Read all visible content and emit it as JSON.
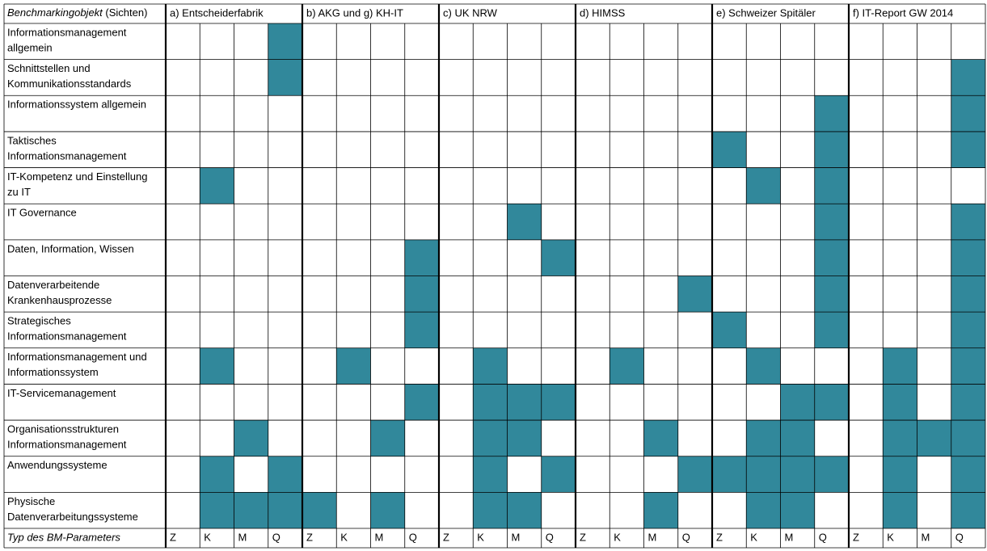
{
  "header": {
    "object_italic": "Benchmarkingobjekt",
    "object_suffix": " (Sichten)",
    "groups": [
      "a) Entscheiderfabrik",
      "b) AKG und g) KH-IT",
      "c) UK NRW",
      "d) HIMSS",
      "e) Schweizer Spitäler",
      "f) IT-Report GW 2014"
    ]
  },
  "fill_color": "#31889b",
  "rows": [
    {
      "label": [
        "Informationsmanagement",
        "allgemein"
      ],
      "cells": [
        0,
        0,
        0,
        1,
        0,
        0,
        0,
        0,
        0,
        0,
        0,
        0,
        0,
        0,
        0,
        0,
        0,
        0,
        0,
        0,
        0,
        0,
        0,
        0
      ]
    },
    {
      "label": [
        "Schnittstellen und",
        "Kommunikationsstandards"
      ],
      "cells": [
        0,
        0,
        0,
        1,
        0,
        0,
        0,
        0,
        0,
        0,
        0,
        0,
        0,
        0,
        0,
        0,
        0,
        0,
        0,
        0,
        0,
        0,
        0,
        1
      ]
    },
    {
      "label": [
        "Informationssystem allgemein"
      ],
      "cells": [
        0,
        0,
        0,
        0,
        0,
        0,
        0,
        0,
        0,
        0,
        0,
        0,
        0,
        0,
        0,
        0,
        0,
        0,
        0,
        1,
        0,
        0,
        0,
        1
      ]
    },
    {
      "label": [
        "Taktisches",
        "Informationsmanagement"
      ],
      "cells": [
        0,
        0,
        0,
        0,
        0,
        0,
        0,
        0,
        0,
        0,
        0,
        0,
        0,
        0,
        0,
        0,
        1,
        0,
        0,
        1,
        0,
        0,
        0,
        1
      ]
    },
    {
      "label": [
        "IT-Kompetenz und Einstellung",
        "zu IT"
      ],
      "cells": [
        0,
        1,
        0,
        0,
        0,
        0,
        0,
        0,
        0,
        0,
        0,
        0,
        0,
        0,
        0,
        0,
        0,
        1,
        0,
        1,
        0,
        0,
        0,
        0
      ]
    },
    {
      "label": [
        "IT Governance"
      ],
      "cells": [
        0,
        0,
        0,
        0,
        0,
        0,
        0,
        0,
        0,
        0,
        1,
        0,
        0,
        0,
        0,
        0,
        0,
        0,
        0,
        1,
        0,
        0,
        0,
        1
      ]
    },
    {
      "label": [
        "Daten, Information, Wissen"
      ],
      "cells": [
        0,
        0,
        0,
        0,
        0,
        0,
        0,
        1,
        0,
        0,
        0,
        1,
        0,
        0,
        0,
        0,
        0,
        0,
        0,
        1,
        0,
        0,
        0,
        1
      ]
    },
    {
      "label": [
        "Datenverarbeitende",
        "Krankenhausprozesse"
      ],
      "cells": [
        0,
        0,
        0,
        0,
        0,
        0,
        0,
        1,
        0,
        0,
        0,
        0,
        0,
        0,
        0,
        1,
        0,
        0,
        0,
        1,
        0,
        0,
        0,
        1
      ]
    },
    {
      "label": [
        "Strategisches",
        "Informationsmanagement"
      ],
      "cells": [
        0,
        0,
        0,
        0,
        0,
        0,
        0,
        1,
        0,
        0,
        0,
        0,
        0,
        0,
        0,
        0,
        1,
        0,
        0,
        1,
        0,
        0,
        0,
        1
      ]
    },
    {
      "label": [
        "Informationsmanagement und",
        "Informationssystem"
      ],
      "cells": [
        0,
        1,
        0,
        0,
        0,
        1,
        0,
        0,
        0,
        1,
        0,
        0,
        0,
        1,
        0,
        0,
        0,
        1,
        0,
        0,
        0,
        1,
        0,
        1
      ]
    },
    {
      "label": [
        "IT-Servicemanagement"
      ],
      "cells": [
        0,
        0,
        0,
        0,
        0,
        0,
        0,
        1,
        0,
        1,
        1,
        1,
        0,
        0,
        0,
        0,
        0,
        0,
        1,
        1,
        0,
        1,
        0,
        1
      ]
    },
    {
      "label": [
        "Organisationsstrukturen",
        "Informationsmanagement"
      ],
      "cells": [
        0,
        0,
        1,
        0,
        0,
        0,
        1,
        0,
        0,
        1,
        1,
        0,
        0,
        0,
        1,
        0,
        0,
        1,
        1,
        0,
        0,
        1,
        1,
        1
      ]
    },
    {
      "label": [
        "Anwendungssysteme"
      ],
      "cells": [
        0,
        1,
        0,
        1,
        0,
        0,
        0,
        0,
        0,
        1,
        0,
        1,
        0,
        0,
        0,
        1,
        1,
        1,
        1,
        1,
        0,
        1,
        0,
        1
      ]
    },
    {
      "label": [
        "Physische",
        "Datenverarbeitungssysteme"
      ],
      "cells": [
        0,
        1,
        1,
        1,
        1,
        0,
        1,
        0,
        0,
        1,
        1,
        0,
        0,
        0,
        1,
        0,
        0,
        1,
        1,
        0,
        0,
        1,
        0,
        1
      ]
    }
  ],
  "footer": {
    "label": "Typ des BM-Parameters",
    "types": [
      "Z",
      "K",
      "M",
      "Q"
    ]
  }
}
